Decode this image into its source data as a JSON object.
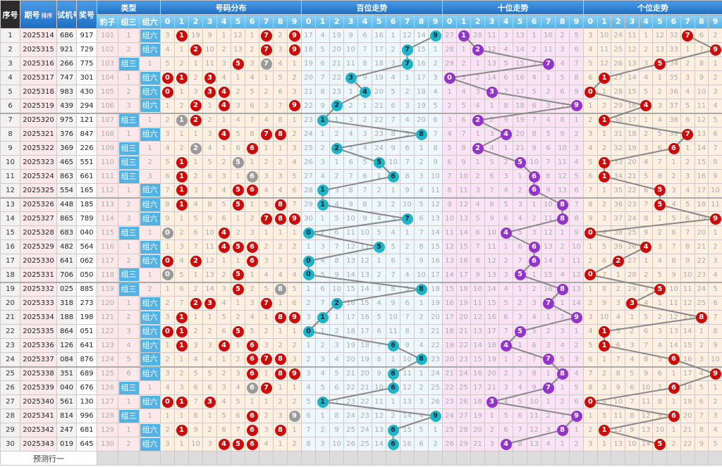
{
  "header": {
    "seq": "序号",
    "period": "期号",
    "sort": "排序",
    "test": "试机号",
    "prize": "奖号",
    "type": "类型",
    "type_cols": [
      "豹子",
      "组三",
      "组六"
    ],
    "dist": "号码分布",
    "hundreds": "百位走势",
    "tens": "十位走势",
    "units": "个位走势",
    "digits": [
      "0",
      "1",
      "2",
      "3",
      "4",
      "5",
      "6",
      "7",
      "8",
      "9"
    ]
  },
  "labels": {
    "zu3": "组三",
    "zu6": "组六"
  },
  "rows": [
    {
      "seq": "1",
      "period": "2025314",
      "test": "686",
      "prize": "917"
    },
    {
      "seq": "2",
      "period": "2025315",
      "test": "921",
      "prize": "729"
    },
    {
      "seq": "3",
      "period": "2025316",
      "test": "266",
      "prize": "775"
    },
    {
      "seq": "4",
      "period": "2025317",
      "test": "747",
      "prize": "301"
    },
    {
      "seq": "5",
      "period": "2025318",
      "test": "983",
      "prize": "430"
    },
    {
      "seq": "6",
      "period": "2025319",
      "test": "439",
      "prize": "294"
    },
    {
      "seq": "7",
      "period": "2025320",
      "test": "975",
      "prize": "121"
    },
    {
      "seq": "8",
      "period": "2025321",
      "test": "376",
      "prize": "847"
    },
    {
      "seq": "9",
      "period": "2025322",
      "test": "369",
      "prize": "226"
    },
    {
      "seq": "10",
      "period": "2025323",
      "test": "465",
      "prize": "551"
    },
    {
      "seq": "11",
      "period": "2025324",
      "test": "863",
      "prize": "661"
    },
    {
      "seq": "12",
      "period": "2025325",
      "test": "554",
      "prize": "165"
    },
    {
      "seq": "13",
      "period": "2025326",
      "test": "448",
      "prize": "185"
    },
    {
      "seq": "14",
      "period": "2025327",
      "test": "865",
      "prize": "789"
    },
    {
      "seq": "15",
      "period": "2025328",
      "test": "683",
      "prize": "040"
    },
    {
      "seq": "16",
      "period": "2025329",
      "test": "482",
      "prize": "564"
    },
    {
      "seq": "17",
      "period": "2025330",
      "test": "641",
      "prize": "062"
    },
    {
      "seq": "18",
      "period": "2025331",
      "test": "706",
      "prize": "050"
    },
    {
      "seq": "19",
      "period": "2025332",
      "test": "025",
      "prize": "885"
    },
    {
      "seq": "20",
      "period": "2025333",
      "test": "318",
      "prize": "273"
    },
    {
      "seq": "21",
      "period": "2025334",
      "test": "188",
      "prize": "198"
    },
    {
      "seq": "22",
      "period": "2025335",
      "test": "864",
      "prize": "051"
    },
    {
      "seq": "23",
      "period": "2025336",
      "test": "126",
      "prize": "641"
    },
    {
      "seq": "24",
      "period": "2025337",
      "test": "084",
      "prize": "876"
    },
    {
      "seq": "25",
      "period": "2025338",
      "test": "351",
      "prize": "689"
    },
    {
      "seq": "26",
      "period": "2025339",
      "test": "040",
      "prize": "676"
    },
    {
      "seq": "27",
      "period": "2025340",
      "test": "561",
      "prize": "130"
    },
    {
      "seq": "28",
      "period": "2025341",
      "test": "814",
      "prize": "996"
    },
    {
      "seq": "29",
      "period": "2025342",
      "test": "247",
      "prize": "681"
    },
    {
      "seq": "30",
      "period": "2025343",
      "test": "019",
      "prize": "645"
    }
  ],
  "first_row_omissions": {
    "type": [
      101,
      1,
      0
    ],
    "dist": [
      3,
      0,
      19,
      9,
      1,
      12,
      1,
      0,
      2,
      0
    ],
    "hundreds": [
      17,
      4,
      19,
      9,
      6,
      16,
      1,
      12,
      14,
      0
    ],
    "tens": [
      27,
      0,
      28,
      11,
      3,
      13,
      1,
      10,
      2,
      5
    ],
    "units": [
      3,
      10,
      24,
      11,
      1,
      12,
      32,
      0,
      6,
      2
    ]
  },
  "footer": {
    "label": "预测行一"
  },
  "colors": {
    "header": "#1e6fc4",
    "subheader": "#4fb0e6",
    "dist_ball": "#cc0a0a",
    "repeat_ball": "#9a9a9a",
    "hundreds_ball": "#20b4c9",
    "tens_ball": "#9233c9",
    "units_ball": "#cc0a0a",
    "trend_line": "#888888"
  }
}
